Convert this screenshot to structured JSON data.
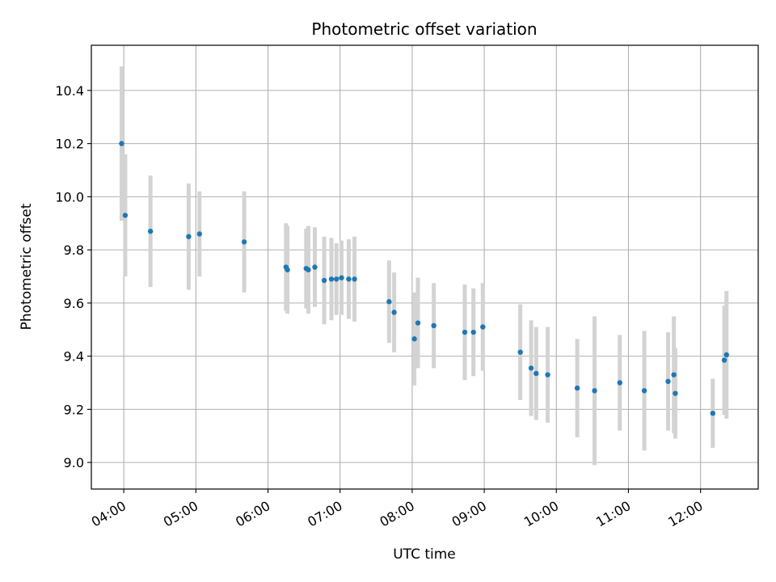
{
  "chart_data": {
    "type": "scatter",
    "title": "Photometric offset variation",
    "xlabel": "UTC time",
    "ylabel": "Photometric offset",
    "x_unit": "hours UTC",
    "xlim": [
      3.55,
      12.8
    ],
    "ylim": [
      8.9,
      10.57
    ],
    "x_tick_values": [
      4,
      5,
      6,
      7,
      8,
      9,
      10,
      11,
      12
    ],
    "x_tick_labels": [
      "04:00",
      "05:00",
      "06:00",
      "07:00",
      "08:00",
      "09:00",
      "10:00",
      "11:00",
      "12:00"
    ],
    "y_tick_values": [
      9.0,
      9.2,
      9.4,
      9.6,
      9.8,
      10.0,
      10.2,
      10.4
    ],
    "y_tick_labels": [
      "9.0",
      "9.2",
      "9.4",
      "9.6",
      "9.8",
      "10.0",
      "10.2",
      "10.4"
    ],
    "grid": true,
    "colors": {
      "points": "#1f77b4",
      "errorbars": "#d3d3d3",
      "grid": "#b0b0b0"
    },
    "points": [
      {
        "x": 3.97,
        "y": 10.2,
        "err": 0.29
      },
      {
        "x": 4.02,
        "y": 9.93,
        "err": 0.23
      },
      {
        "x": 4.37,
        "y": 9.87,
        "err": 0.21
      },
      {
        "x": 4.9,
        "y": 9.85,
        "err": 0.2
      },
      {
        "x": 5.05,
        "y": 9.86,
        "err": 0.16
      },
      {
        "x": 5.67,
        "y": 9.83,
        "err": 0.19
      },
      {
        "x": 6.25,
        "y": 9.735,
        "err": 0.165
      },
      {
        "x": 6.27,
        "y": 9.725,
        "err": 0.165
      },
      {
        "x": 6.53,
        "y": 9.73,
        "err": 0.15
      },
      {
        "x": 6.56,
        "y": 9.725,
        "err": 0.165
      },
      {
        "x": 6.65,
        "y": 9.735,
        "err": 0.15
      },
      {
        "x": 6.78,
        "y": 9.685,
        "err": 0.165
      },
      {
        "x": 6.88,
        "y": 9.69,
        "err": 0.155
      },
      {
        "x": 6.95,
        "y": 9.69,
        "err": 0.135
      },
      {
        "x": 7.02,
        "y": 9.695,
        "err": 0.14
      },
      {
        "x": 7.12,
        "y": 9.69,
        "err": 0.15
      },
      {
        "x": 7.2,
        "y": 9.69,
        "err": 0.16
      },
      {
        "x": 7.68,
        "y": 9.605,
        "err": 0.155
      },
      {
        "x": 7.75,
        "y": 9.565,
        "err": 0.15
      },
      {
        "x": 8.03,
        "y": 9.465,
        "err": 0.175
      },
      {
        "x": 8.08,
        "y": 9.525,
        "err": 0.17
      },
      {
        "x": 8.3,
        "y": 9.515,
        "err": 0.16
      },
      {
        "x": 8.73,
        "y": 9.49,
        "err": 0.18
      },
      {
        "x": 8.85,
        "y": 9.49,
        "err": 0.165
      },
      {
        "x": 8.98,
        "y": 9.51,
        "err": 0.165
      },
      {
        "x": 9.5,
        "y": 9.415,
        "err": 0.18
      },
      {
        "x": 9.65,
        "y": 9.355,
        "err": 0.18
      },
      {
        "x": 9.72,
        "y": 9.335,
        "err": 0.175
      },
      {
        "x": 9.88,
        "y": 9.33,
        "err": 0.18
      },
      {
        "x": 10.29,
        "y": 9.28,
        "err": 0.185
      },
      {
        "x": 10.53,
        "y": 9.27,
        "err": 0.28
      },
      {
        "x": 10.88,
        "y": 9.3,
        "err": 0.18
      },
      {
        "x": 11.22,
        "y": 9.27,
        "err": 0.225
      },
      {
        "x": 11.55,
        "y": 9.305,
        "err": 0.185
      },
      {
        "x": 11.63,
        "y": 9.33,
        "err": 0.22
      },
      {
        "x": 11.65,
        "y": 9.26,
        "err": 0.17
      },
      {
        "x": 12.17,
        "y": 9.185,
        "err": 0.13
      },
      {
        "x": 12.33,
        "y": 9.385,
        "err": 0.205
      },
      {
        "x": 12.36,
        "y": 9.405,
        "err": 0.24
      }
    ]
  }
}
